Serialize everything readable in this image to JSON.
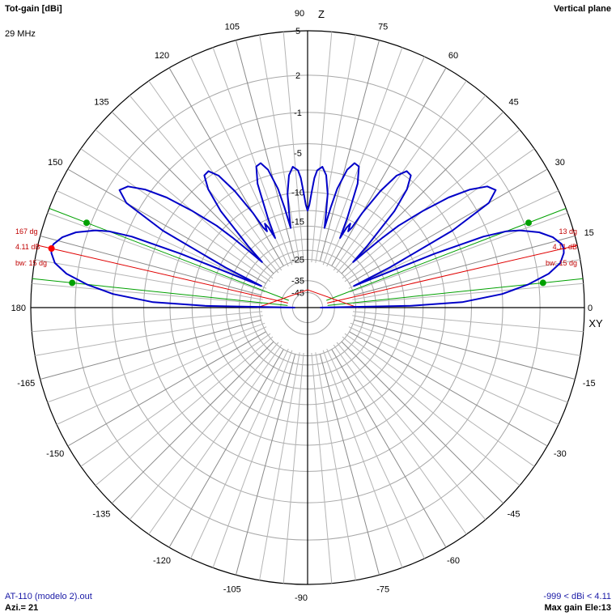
{
  "header": {
    "quantity_label": "Tot-gain [dBi]",
    "frequency": "29 MHz",
    "plane": "Vertical plane"
  },
  "footer": {
    "file_name": "AT-110 (modelo 2).out",
    "azimuth": "Azi.= 21",
    "gain_range": "-999 < dBi < 4.11",
    "max_gain": "Max gain Ele:13"
  },
  "chart_data": {
    "type": "polar",
    "angle_unit": "deg",
    "angle_ticks": [
      0,
      15,
      30,
      45,
      60,
      75,
      90,
      105,
      120,
      135,
      150,
      180,
      -165,
      -150,
      -135,
      -120,
      -105,
      -90,
      -75,
      -60,
      -45,
      -30,
      -15
    ],
    "radial_ticks": [
      5,
      2,
      -1,
      -5,
      -10,
      -15,
      -25,
      -35,
      -45
    ],
    "radial_range_dbi": [
      -50,
      5
    ],
    "axis_labels": {
      "vertical": "Z",
      "horizontal": "XY"
    },
    "grid": true,
    "series": [
      {
        "color": "#0000c8",
        "points": [
          [
            0,
            -48
          ],
          [
            1,
            -12
          ],
          [
            2,
            -5
          ],
          [
            4,
            -1
          ],
          [
            6,
            1.2
          ],
          [
            8,
            2.8
          ],
          [
            10,
            3.7
          ],
          [
            12,
            4.05
          ],
          [
            13,
            4.11
          ],
          [
            14,
            4.05
          ],
          [
            16,
            3.6
          ],
          [
            18,
            2.8
          ],
          [
            20,
            1.5
          ],
          [
            21,
            0.5
          ],
          [
            22,
            -1.5
          ],
          [
            23,
            -7
          ],
          [
            24,
            -17
          ],
          [
            25,
            -24
          ],
          [
            26,
            -14
          ],
          [
            28,
            -4
          ],
          [
            30,
            0.2
          ],
          [
            32,
            1.2
          ],
          [
            34,
            0.8
          ],
          [
            36,
            -0.5
          ],
          [
            38,
            -2.5
          ],
          [
            40,
            -5.5
          ],
          [
            42,
            -9
          ],
          [
            43,
            -12
          ],
          [
            44,
            -16
          ],
          [
            45,
            -20
          ],
          [
            46,
            -15
          ],
          [
            48,
            -8
          ],
          [
            50,
            -5
          ],
          [
            52,
            -3.6
          ],
          [
            54,
            -3.5
          ],
          [
            56,
            -4.5
          ],
          [
            58,
            -7
          ],
          [
            60,
            -11
          ],
          [
            61,
            -14
          ],
          [
            62,
            -15
          ],
          [
            63,
            -13.5
          ],
          [
            64,
            -14.5
          ],
          [
            65,
            -17
          ],
          [
            66,
            -13
          ],
          [
            68,
            -7.5
          ],
          [
            70,
            -5.5
          ],
          [
            72,
            -5.3
          ],
          [
            74,
            -6.3
          ],
          [
            76,
            -9
          ],
          [
            77,
            -12
          ],
          [
            78,
            -16
          ],
          [
            79,
            -13
          ],
          [
            80,
            -10
          ],
          [
            82,
            -7.5
          ],
          [
            84,
            -6.5
          ],
          [
            86,
            -7
          ],
          [
            87,
            -8
          ],
          [
            88,
            -10
          ],
          [
            89,
            -12
          ],
          [
            90,
            -13
          ]
        ]
      }
    ],
    "main_lobe": {
      "elevation_deg": 13,
      "peak_gain_dbi": 4.11,
      "beamwidth_deg": 15,
      "half_power_points_deg": [
        6,
        21
      ],
      "labels_right": [
        "13 dg",
        "4.11 dB",
        "bw: 15 dg"
      ],
      "labels_left": [
        "167 dg",
        "4.11 dB",
        "bw: 15 dg"
      ],
      "marker_colors": {
        "peak": "#ff0000",
        "half_power": "#00a000"
      }
    }
  }
}
